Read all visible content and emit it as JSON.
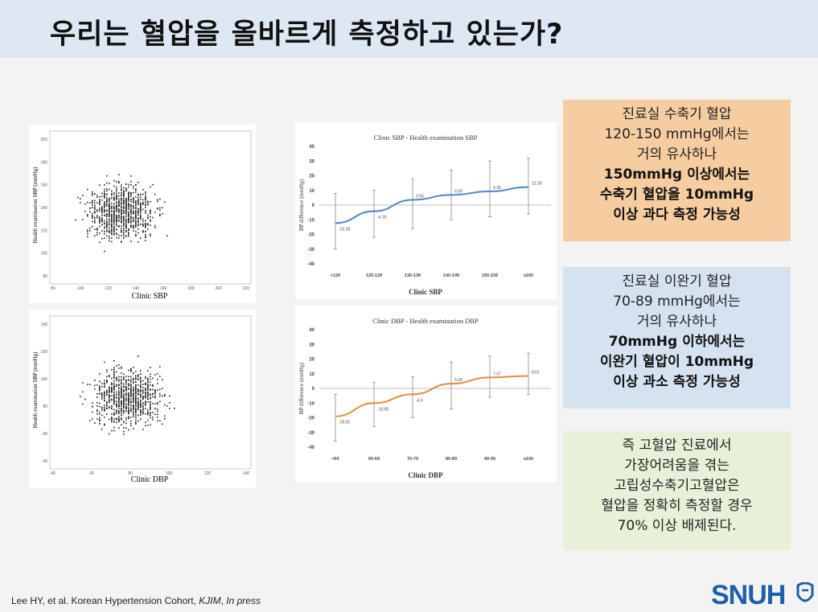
{
  "title": "우리는 혈압을 올바르게 측정하고 있는가?",
  "colors": {
    "accent_blue": "#4a86c8",
    "accent_orange": "#e58a3a",
    "logo_blue": "#1f5ea8"
  },
  "scatter1": {
    "xlabel": "Clinic SBP",
    "ylabel": "Health examination SBP (mmHg)",
    "xticks": [
      "80",
      "100",
      "120",
      "140",
      "160",
      "180",
      "200",
      "220"
    ],
    "yticks": [
      "80",
      "100",
      "120",
      "140",
      "160",
      "180",
      "200"
    ]
  },
  "scatter2": {
    "xlabel": "Clinic DBP",
    "ylabel": "Health examination SBP (mmHg)",
    "xticks": [
      "40",
      "60",
      "80",
      "100",
      "120",
      "140"
    ],
    "yticks": [
      "40",
      "60",
      "80",
      "100",
      "120",
      "140"
    ]
  },
  "chart_data": [
    {
      "type": "line",
      "title": "Clinic SBP - Health examination SBP",
      "xlabel": "Clinic SBP",
      "ylabel": "BP difference (mmHg)",
      "categories": [
        "<120",
        "120-129",
        "130-139",
        "140-149",
        "150-159",
        "≥160"
      ],
      "values": [
        -12.28,
        -4.16,
        3.56,
        6.93,
        9.3,
        12.29
      ],
      "labels": [
        "-12.28",
        "-4.16",
        "3.56",
        "6.93",
        "9.30",
        "12.29"
      ],
      "err_low": [
        -30,
        -22,
        -16,
        -10,
        -8,
        -6
      ],
      "err_high": [
        8,
        10,
        18,
        24,
        30,
        32
      ],
      "yticks": [
        "40",
        "30",
        "20",
        "10",
        "0",
        "-10",
        "-20",
        "-30",
        "-40"
      ],
      "ylim": [
        -40,
        40
      ],
      "color": "#4a86c8"
    },
    {
      "type": "line",
      "title": "Clinic DBP - Health examination DBP",
      "xlabel": "Clinic DBP",
      "ylabel": "BP difference (mmHg)",
      "categories": [
        "<60",
        "60-69",
        "70-79",
        "80-89",
        "90-99",
        "≥100"
      ],
      "values": [
        -19.01,
        -10.0,
        -4.0,
        3.24,
        7.47,
        8.51
      ],
      "labels": [
        "-19.01",
        "-10.00",
        "-4.0",
        "3.24",
        "7.47",
        "8.51"
      ],
      "err_low": [
        -36,
        -26,
        -20,
        -14,
        -6,
        -4
      ],
      "err_high": [
        -4,
        4,
        8,
        18,
        22,
        24
      ],
      "yticks": [
        "40",
        "30",
        "20",
        "10",
        "0",
        "-10",
        "-20",
        "-30",
        "-40"
      ],
      "ylim": [
        -40,
        40
      ],
      "color": "#e58a3a"
    }
  ],
  "box1": {
    "l1": "진료실 수축기 혈압",
    "l2": "120-150 mmHg에서는",
    "l3": "거의 유사하나",
    "b1": "150mmHg 이상에서는",
    "b2": "수축기 혈압을 10mmHg",
    "b3": "이상 과다 측정 가능성"
  },
  "box2": {
    "l1": "진료실 이완기 혈압",
    "l2": "70-89 mmHg에서는",
    "l3": "거의 유사하나",
    "b1": "70mmHg 이하에서는",
    "b2": "이완기 혈압이 10mmHg",
    "b3": "이상 과소 측정 가능성"
  },
  "box3": {
    "l1": "즉 고혈압 진료에서",
    "l2": "가장어려움을 겪는",
    "l3": "고립성수축기고혈압은",
    "l4": "혈압을 정확히 측정할 경우",
    "l5": "70% 이상 배제된다."
  },
  "footer": {
    "text": "Lee HY, et al. Korean Hypertension Cohort, ",
    "journal": "KJIM",
    "sep": ", ",
    "press": "In press"
  },
  "logo": {
    "text": "SNUH"
  }
}
